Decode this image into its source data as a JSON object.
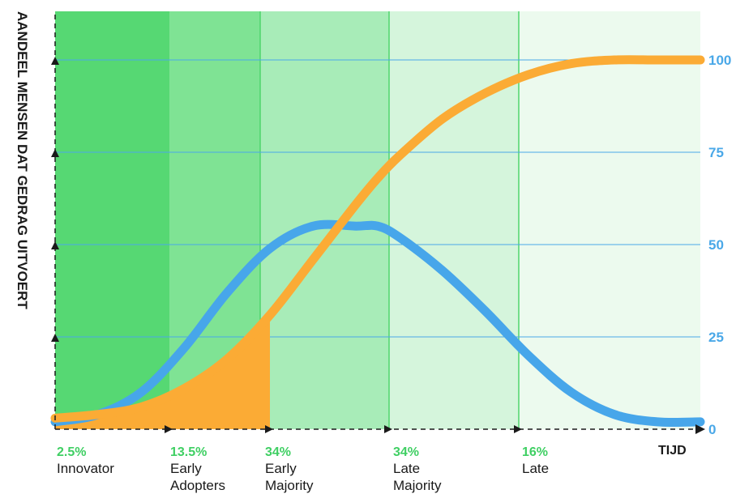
{
  "chart_data": {
    "type": "line",
    "ylabel": "AANDEEL MENSEN DAT GEDRAG UITVOERT",
    "xlabel": "TIJD",
    "ylim": [
      0,
      100
    ],
    "y_ticks": [
      "0",
      "25",
      "50",
      "75",
      "100"
    ],
    "segments": [
      {
        "pct": "2.5%",
        "name": [
          "Innovator"
        ],
        "color": "#56d873"
      },
      {
        "pct": "13.5%",
        "name": [
          "Early",
          "Adopters"
        ],
        "color": "#7fe394"
      },
      {
        "pct": "34%",
        "name": [
          "Early",
          "Majority"
        ],
        "color": "#a8ecb8"
      },
      {
        "pct": "34%",
        "name": [
          "Late",
          "Majority"
        ],
        "color": "#d5f5dc"
      },
      {
        "pct": "16%",
        "name": [
          "Late"
        ],
        "color": "#ecfaee"
      }
    ],
    "series": [
      {
        "color": "#47a6ea",
        "x": [
          0,
          2,
          4,
          6,
          8,
          10,
          12,
          14,
          15,
          16,
          18,
          20,
          22,
          24,
          26,
          28,
          30
        ],
        "y": [
          2,
          4,
          10,
          22,
          37,
          49,
          55,
          55,
          55,
          52,
          43,
          32,
          20,
          10,
          4,
          2,
          2
        ]
      },
      {
        "color": "#fbab35",
        "x": [
          0,
          2,
          4,
          6,
          8,
          10,
          12,
          14,
          15,
          16,
          18,
          20,
          22,
          24,
          26,
          28,
          30
        ],
        "y": [
          3,
          4,
          6,
          11,
          19,
          31,
          46,
          61,
          68,
          74,
          84,
          91,
          96,
          99,
          100,
          100,
          100
        ]
      }
    ]
  }
}
